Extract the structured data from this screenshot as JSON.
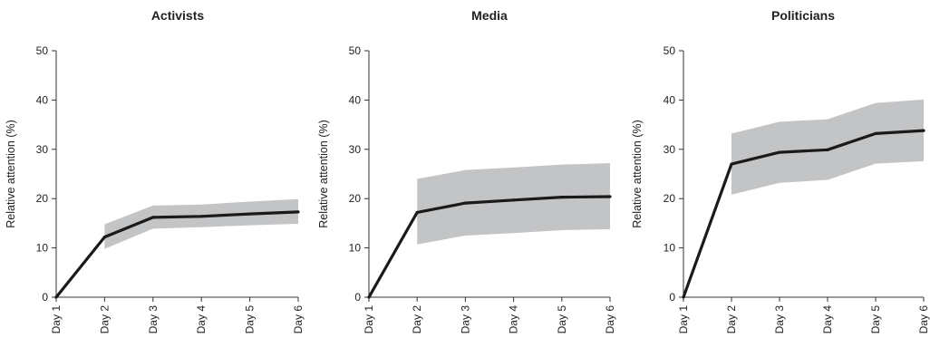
{
  "chart_data": [
    {
      "type": "line",
      "title": "Activists",
      "xlabel": "",
      "ylabel": "Relative attention (%)",
      "categories": [
        "Day 1",
        "Day 2",
        "Day 3",
        "Day 4",
        "Day 5",
        "Day 6"
      ],
      "values": [
        0,
        12.2,
        16.2,
        16.4,
        16.9,
        17.3
      ],
      "band_upper": [
        null,
        14.8,
        18.6,
        18.8,
        19.4,
        19.9
      ],
      "band_lower": [
        null,
        9.8,
        13.9,
        14.2,
        14.6,
        14.9
      ],
      "ylim": [
        0,
        50
      ],
      "yticks": [
        "0",
        "10",
        "20",
        "30",
        "40",
        "50"
      ],
      "grid": false
    },
    {
      "type": "line",
      "title": "Media",
      "xlabel": "",
      "ylabel": "Relative attention (%)",
      "categories": [
        "Day 1",
        "Day 2",
        "Day 3",
        "Day 4",
        "Day 5",
        "Day 6"
      ],
      "values": [
        0,
        17.2,
        19.1,
        19.7,
        20.3,
        20.4
      ],
      "band_upper": [
        null,
        24.0,
        25.8,
        26.3,
        26.9,
        27.2
      ],
      "band_lower": [
        null,
        10.7,
        12.5,
        13.0,
        13.6,
        13.8
      ],
      "ylim": [
        0,
        50
      ],
      "yticks": [
        "0",
        "10",
        "20",
        "30",
        "40",
        "50"
      ],
      "grid": false
    },
    {
      "type": "line",
      "title": "Politicians",
      "xlabel": "",
      "ylabel": "Relative attention (%)",
      "categories": [
        "Day 1",
        "Day 2",
        "Day 3",
        "Day 4",
        "Day 5",
        "Day 6"
      ],
      "values": [
        0,
        27.0,
        29.4,
        29.9,
        33.2,
        33.8
      ],
      "band_upper": [
        null,
        33.2,
        35.6,
        36.1,
        39.4,
        40.1
      ],
      "band_lower": [
        null,
        20.8,
        23.2,
        23.8,
        27.1,
        27.6
      ],
      "ylim": [
        0,
        50
      ],
      "yticks": [
        "0",
        "10",
        "20",
        "30",
        "40",
        "50"
      ],
      "grid": false
    }
  ],
  "colors": {
    "line": "#1a1a1a",
    "band": "#c3c4c6",
    "axis": "#333333"
  }
}
